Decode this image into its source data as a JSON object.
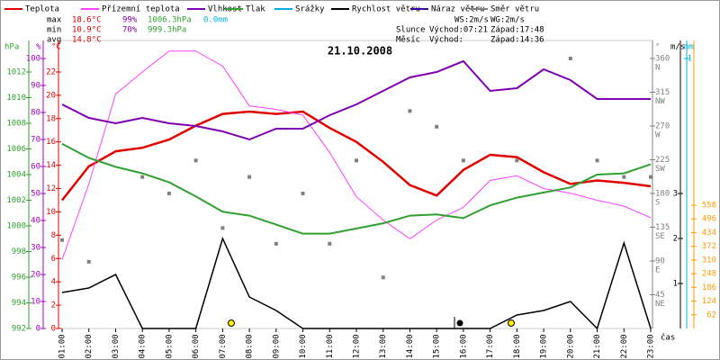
{
  "chart_data": {
    "type": "line",
    "title": "21.10.2008",
    "x_label": "čas",
    "categories": [
      "01:00",
      "02:00",
      "03:00",
      "04:00",
      "05:00",
      "06:00",
      "07:00",
      "08:00",
      "09:00",
      "10:00",
      "11:00",
      "12:00",
      "13:00",
      "14:00",
      "15:00",
      "16:00",
      "17:00",
      "18:00",
      "19:00",
      "20:00",
      "21:00",
      "22:00",
      "23:00"
    ],
    "axes": {
      "hpa": {
        "label": "hPa",
        "color": "#30a030",
        "lim": [
          992,
          1012
        ],
        "ticks": [
          992,
          994,
          996,
          998,
          1000,
          1002,
          1004,
          1006,
          1008,
          1010,
          1012
        ]
      },
      "pct": {
        "label": "%",
        "color": "#a000c0",
        "lim": [
          0,
          100
        ],
        "ticks": [
          0,
          10,
          20,
          30,
          40,
          50,
          60,
          70,
          80,
          90,
          100
        ]
      },
      "degc": {
        "label": "°C",
        "color": "#e00000",
        "lim": [
          0,
          22
        ],
        "ticks": [
          0,
          2,
          4,
          6,
          8,
          10,
          12,
          14,
          16,
          18,
          20,
          22
        ]
      },
      "dir": {
        "label": "°",
        "color": "#808080",
        "lim": [
          0,
          360
        ],
        "ticks": [
          45,
          90,
          135,
          180,
          225,
          270,
          315,
          360
        ],
        "compass": [
          "NE",
          "E",
          "SE",
          "S",
          "SW",
          "W",
          "NW",
          "N"
        ]
      },
      "ms": {
        "label": "m/s",
        "color": "#000000",
        "lim": [
          0,
          6
        ],
        "ticks": [
          1,
          2,
          3
        ]
      },
      "mm": {
        "label": "mm",
        "color": "#00b0e0",
        "lim": [
          0,
          1
        ],
        "ticks": [
          1
        ]
      },
      "sol": {
        "color": "#ff9900",
        "lim": [
          0,
          558
        ],
        "ticks": [
          62,
          124,
          186,
          248,
          310,
          372,
          434,
          496,
          558
        ]
      }
    },
    "series": [
      {
        "name": "Teplota",
        "color": "#e00000",
        "axis": "degc",
        "width": 2.5,
        "values": [
          11.0,
          13.9,
          15.2,
          15.5,
          16.2,
          17.4,
          18.4,
          18.6,
          18.4,
          18.6,
          17.2,
          16.0,
          14.3,
          12.3,
          11.4,
          13.6,
          14.9,
          14.7,
          13.4,
          12.4,
          12.7,
          12.5,
          12.2
        ]
      },
      {
        "name": "Přízemní teplota",
        "color": "#ff40ff",
        "axis": "degc",
        "width": 1,
        "values": [
          5.9,
          12.4,
          20.1,
          22.0,
          23.8,
          23.8,
          22.5,
          19.1,
          18.8,
          18.3,
          15.1,
          11.3,
          9.3,
          7.7,
          9.3,
          10.4,
          12.7,
          13.1,
          12.0,
          11.6,
          11.0,
          10.5,
          9.5
        ]
      },
      {
        "name": "Vlhkost",
        "color": "#8000b0",
        "axis": "pct",
        "width": 2,
        "values": [
          83,
          78,
          76,
          78,
          76,
          75,
          73,
          70,
          74,
          74,
          79,
          83,
          88,
          93,
          95,
          99,
          88,
          89,
          96,
          92,
          85,
          85,
          85
        ]
      },
      {
        "name": "Tlak",
        "color": "#30a030",
        "axis": "hpa",
        "width": 2,
        "values": [
          1006.4,
          1005.3,
          1004.6,
          1004.1,
          1003.4,
          1002.3,
          1001.1,
          1000.8,
          1000.1,
          999.4,
          999.4,
          999.8,
          1000.2,
          1000.8,
          1000.9,
          1000.6,
          1001.6,
          1002.2,
          1002.6,
          1003.0,
          1004.0,
          1004.1,
          1004.8
        ]
      },
      {
        "name": "Srážky",
        "color": "#00b0e0",
        "axis": "mm"
      },
      {
        "name": "Rychlost větru",
        "color": "#000000",
        "axis": "ms",
        "width": 1.5,
        "values": [
          0.8,
          0.9,
          1.2,
          0,
          0,
          0,
          2.0,
          0.7,
          0.4,
          0,
          0,
          0,
          0,
          0,
          0,
          0,
          0,
          0.3,
          0.4,
          0.6,
          0,
          1.9,
          0
        ]
      },
      {
        "name": "Náraz větru",
        "color": "#4000a0",
        "axis": "ms"
      },
      {
        "name": "Směr větru",
        "color": "#808080",
        "axis": "dir",
        "mode": "points",
        "values": [
          118,
          89,
          null,
          202,
          180,
          224,
          134,
          202,
          113,
          180,
          113,
          224,
          68,
          290,
          269,
          224,
          null,
          224,
          null,
          360,
          224,
          202,
          202
        ]
      }
    ],
    "stats": {
      "max_label": "max",
      "max": [
        "18.6°C",
        "99%",
        "1006.3hPa",
        "0.0mm"
      ],
      "min_label": "min",
      "min": [
        "10.9°C",
        "70%",
        "999.3hPa"
      ],
      "avg_label": "avg",
      "avg": [
        "14.8°C"
      ]
    },
    "info": {
      "ws": "WS:2m/s",
      "wg": "WG:2m/s",
      "sun": "Slunce",
      "sun_rise": "Východ:07:21",
      "sun_set": "Západ:17:48",
      "moon": "Měsíc",
      "moon_rise": "Východ:",
      "moon_set": "Západ:14:36"
    }
  }
}
